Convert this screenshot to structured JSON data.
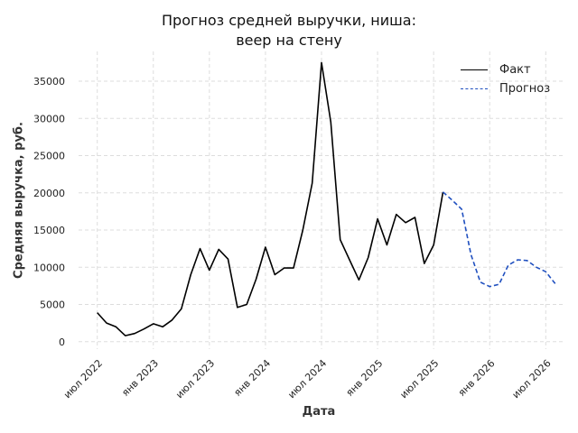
{
  "chart_data": {
    "type": "line",
    "title": [
      "Прогноз средней выручки, ниша:",
      "веер на стену"
    ],
    "xlabel": "Дата",
    "ylabel": "Средняя выручка, руб.",
    "ylim": [
      -1000,
      39000
    ],
    "yticks": [
      0,
      5000,
      10000,
      15000,
      20000,
      25000,
      30000,
      35000
    ],
    "xticks": [
      {
        "date": "2022-07",
        "label": "июл 2022"
      },
      {
        "date": "2023-01",
        "label": "янв 2023"
      },
      {
        "date": "2023-07",
        "label": "июл 2023"
      },
      {
        "date": "2024-01",
        "label": "янв 2024"
      },
      {
        "date": "2024-07",
        "label": "июл 2024"
      },
      {
        "date": "2025-01",
        "label": "янв 2025"
      },
      {
        "date": "2025-07",
        "label": "июл 2025"
      },
      {
        "date": "2026-01",
        "label": "янв 2026"
      },
      {
        "date": "2026-07",
        "label": "июл 2026"
      }
    ],
    "xrange": [
      "2022-05",
      "2026-09"
    ],
    "grid": true,
    "legend_position": "top-right",
    "series": [
      {
        "name": "Факт",
        "color": "#000000",
        "style": "solid",
        "x": [
          "2022-07",
          "2022-08",
          "2022-09",
          "2022-10",
          "2022-11",
          "2022-12",
          "2023-01",
          "2023-02",
          "2023-03",
          "2023-04",
          "2023-05",
          "2023-06",
          "2023-07",
          "2023-08",
          "2023-09",
          "2023-10",
          "2023-11",
          "2023-12",
          "2024-01",
          "2024-02",
          "2024-03",
          "2024-04",
          "2024-05",
          "2024-06",
          "2024-07",
          "2024-08",
          "2024-09",
          "2024-10",
          "2024-11",
          "2024-12",
          "2025-01",
          "2025-02",
          "2025-03",
          "2025-04",
          "2025-05",
          "2025-06",
          "2025-07",
          "2025-08"
        ],
        "values": [
          3900,
          2500,
          2000,
          800,
          1100,
          1700,
          2400,
          2000,
          2900,
          4400,
          9000,
          12500,
          9600,
          12400,
          11100,
          4600,
          5000,
          8400,
          12700,
          9000,
          9900,
          9900,
          15000,
          21300,
          37500,
          29500,
          13700,
          11000,
          8300,
          11300,
          16500,
          13000,
          17100,
          16000,
          16700,
          10500,
          13000,
          20100
        ]
      },
      {
        "name": "Прогноз",
        "color": "#1f4fbf",
        "style": "dashed",
        "x": [
          "2025-08",
          "2025-09",
          "2025-10",
          "2025-11",
          "2025-12",
          "2026-01",
          "2026-02",
          "2026-03",
          "2026-04",
          "2026-05",
          "2026-06",
          "2026-07",
          "2026-08"
        ],
        "values": [
          20100,
          19000,
          17800,
          11700,
          8000,
          7400,
          7700,
          10300,
          11000,
          10900,
          10000,
          9400,
          7800
        ]
      }
    ]
  }
}
